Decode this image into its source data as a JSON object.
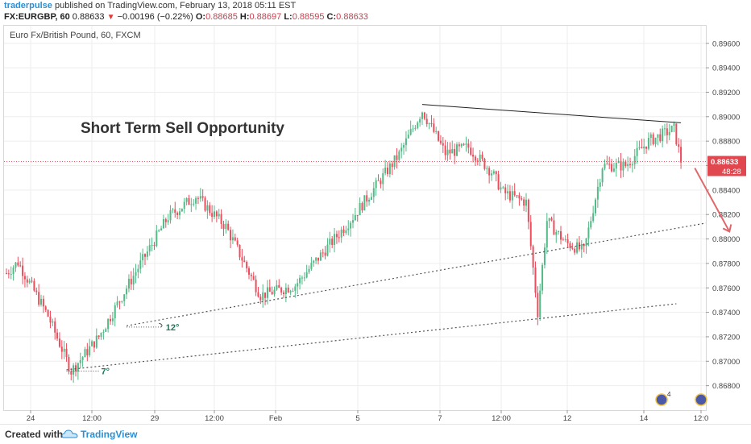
{
  "header": {
    "user": "traderpulse",
    "published_text": "published on TradingView.com, February 13, 2018 05:11 EST",
    "symbol": "FX:EURGBP, 60",
    "last": "0.88633",
    "change": "−0.00196 (−0.22%)",
    "ohlc": [
      {
        "k": "O:",
        "v": "0.88685"
      },
      {
        "k": "H:",
        "v": "0.88697"
      },
      {
        "k": "L:",
        "v": "0.88595"
      },
      {
        "k": "C:",
        "v": "0.88633"
      }
    ]
  },
  "footer": {
    "created_with": "Created with",
    "brand": "TradingView"
  },
  "chart_data": {
    "type": "candlestick",
    "title": "Euro Fx/British Pound, 60, FXCM",
    "annotation_title": "Short Term Sell Opportunity",
    "ylim": [
      0.866,
      0.8975
    ],
    "y_ticks": [
      "0.89600",
      "0.89400",
      "0.89200",
      "0.89000",
      "0.88800",
      "0.88600",
      "0.88400",
      "0.88200",
      "0.88000",
      "0.87800",
      "0.87600",
      "0.87400",
      "0.87200",
      "0.87000",
      "0.86800"
    ],
    "x_ticks": [
      "24",
      "12:00",
      "29",
      "12:00",
      "Feb",
      "5",
      "7",
      "12:00",
      "12",
      "14",
      "12:0"
    ],
    "last_price_label": "0.88633",
    "countdown_label": "48:28",
    "last_price": 0.88633,
    "angle_labels": [
      "12°",
      "7°"
    ],
    "event_badge": "4",
    "colors": {
      "up": "#53b987",
      "down": "#eb4d5c",
      "grid": "#eeeeee",
      "arrow": "#e0666a",
      "annotation_angle": "#1a7a56"
    },
    "key_levels": [
      {
        "t": 0,
        "price": 0.8772
      },
      {
        "t": 5,
        "price": 0.8781
      },
      {
        "t": 18,
        "price": 0.8737
      },
      {
        "t": 28,
        "price": 0.8692
      },
      {
        "t": 40,
        "price": 0.872
      },
      {
        "t": 55,
        "price": 0.877
      },
      {
        "t": 70,
        "price": 0.8818
      },
      {
        "t": 82,
        "price": 0.8835
      },
      {
        "t": 95,
        "price": 0.881
      },
      {
        "t": 110,
        "price": 0.8754
      },
      {
        "t": 125,
        "price": 0.8762
      },
      {
        "t": 150,
        "price": 0.8818
      },
      {
        "t": 170,
        "price": 0.8869
      },
      {
        "t": 180,
        "price": 0.8905
      },
      {
        "t": 190,
        "price": 0.887
      },
      {
        "t": 200,
        "price": 0.8875
      },
      {
        "t": 210,
        "price": 0.8855
      },
      {
        "t": 215,
        "price": 0.8838
      },
      {
        "t": 225,
        "price": 0.883
      },
      {
        "t": 230,
        "price": 0.874
      },
      {
        "t": 234,
        "price": 0.8815
      },
      {
        "t": 242,
        "price": 0.8797
      },
      {
        "t": 250,
        "price": 0.879
      },
      {
        "t": 258,
        "price": 0.886
      },
      {
        "t": 268,
        "price": 0.886
      },
      {
        "t": 278,
        "price": 0.888
      },
      {
        "t": 289,
        "price": 0.889
      },
      {
        "t": 292,
        "price": 0.8864
      }
    ]
  }
}
